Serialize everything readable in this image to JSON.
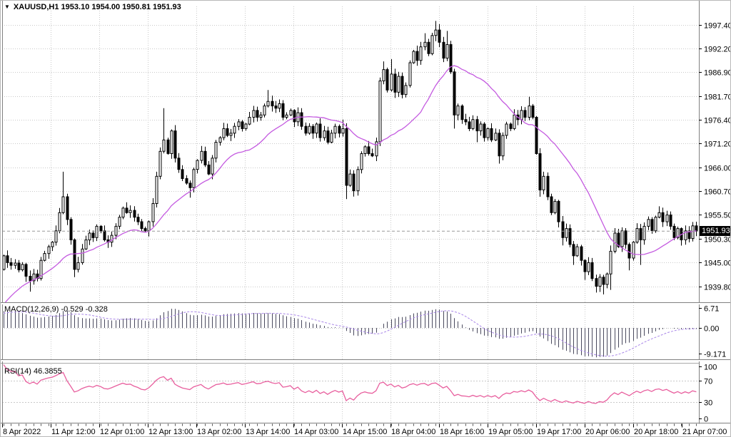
{
  "header": {
    "title": "XAUUSD,H1  1953.10 1954.00 1950.81 1951.93",
    "symbol": "XAUUSD",
    "timeframe": "H1",
    "open": "1953.10",
    "high": "1954.00",
    "low": "1950.81",
    "close": "1951.93"
  },
  "indicators": {
    "macd": {
      "label": "MACD(12,26,9) -0.529 -0.328",
      "name": "MACD",
      "params": [
        12,
        26,
        9
      ],
      "main_value": "-0.529",
      "signal_value": "-0.328",
      "axis_labels": [
        "6.71",
        "0.00",
        "-9.171"
      ],
      "axis_values": [
        6.71,
        0.0,
        -9.171
      ]
    },
    "rsi": {
      "label": "RSI(14) 46.3855",
      "name": "RSI",
      "params": [
        14
      ],
      "value": "46.3855",
      "axis_labels": [
        "100",
        "70",
        "30",
        "0"
      ],
      "axis_values": [
        100,
        70,
        30,
        0
      ],
      "levels": [
        70,
        30
      ]
    }
  },
  "colors": {
    "background": "#ffffff",
    "grid": "#c9c9c9",
    "frame": "#808080",
    "candle_outline": "#000000",
    "candle_bull_fill": "#ffffff",
    "candle_bear_fill": "#000000",
    "ma_line": "#c45ae0",
    "macd_histogram": "#4a4a5e",
    "macd_signal": "#a986e8",
    "rsi_line": "#e85f9e",
    "price_tag_bg": "#000000",
    "price_tag_text": "#ffffff",
    "axis_text": "#000000"
  },
  "chart_data": {
    "type": "candlestick",
    "title": "XAUUSD,H1",
    "symbol": "XAUUSD",
    "timeframe": "H1",
    "current_price": 1951.93,
    "price_axis_labels": [
      1997.4,
      1992.2,
      1986.9,
      1981.7,
      1976.4,
      1971.2,
      1966.0,
      1960.7,
      1955.5,
      1950.3,
      1945.0,
      1939.8
    ],
    "price_axis_range": [
      1935.8,
      2001.5
    ],
    "time_axis_labels": [
      "8 Apr 2022",
      "11 Apr 12:00",
      "12 Apr 01:00",
      "12 Apr 13:00",
      "13 Apr 02:00",
      "13 Apr 14:00",
      "14 Apr 03:00",
      "14 Apr 15:00",
      "18 Apr 04:00",
      "18 Apr 16:00",
      "19 Apr 05:00",
      "19 Apr 17:00",
      "20 Apr 06:00",
      "20 Apr 18:00",
      "21 Apr 07:00"
    ],
    "grid": true,
    "candles": {
      "opens_from_previous_close": true,
      "first_open": 1943.5,
      "default_wick": 0.8,
      "closes": [
        1946.5,
        1945.0,
        1944.4,
        1944.9,
        1943.4,
        1944.6,
        1942.0,
        1941.0,
        1942.5,
        1941.5,
        1945.5,
        1947.0,
        1948.5,
        1949.5,
        1952.0,
        1956.0,
        1959.5,
        1954.5,
        1950.0,
        1943.5,
        1945.0,
        1948.0,
        1950.0,
        1951.5,
        1950.5,
        1953.0,
        1952.0,
        1950.0,
        1949.5,
        1951.0,
        1953.0,
        1955.0,
        1957.0,
        1956.0,
        1956.5,
        1955.0,
        1954.0,
        1952.5,
        1952.0,
        1954.0,
        1958.0,
        1964.0,
        1969.5,
        1972.0,
        1969.0,
        1974.0,
        1968.0,
        1965.5,
        1963.5,
        1962.5,
        1961.5,
        1965.5,
        1967.5,
        1969.5,
        1966.5,
        1964.5,
        1968.0,
        1971.5,
        1972.5,
        1974.5,
        1973.0,
        1973.5,
        1975.0,
        1976.0,
        1974.5,
        1975.5,
        1977.0,
        1978.5,
        1977.0,
        1977.5,
        1979.5,
        1980.5,
        1979.5,
        1979.0,
        1980.0,
        1977.0,
        1977.5,
        1978.5,
        1976.0,
        1978.0,
        1975.0,
        1973.5,
        1975.0,
        1973.5,
        1975.5,
        1972.5,
        1974.0,
        1971.5,
        1973.5,
        1975.0,
        1973.5,
        1974.5,
        1962.0,
        1964.5,
        1960.8,
        1965.5,
        1969.0,
        1970.5,
        1969.0,
        1968.5,
        1971.6,
        1985.0,
        1987.5,
        1983.0,
        1986.5,
        1982.5,
        1986.0,
        1982.0,
        1984.0,
        1989.0,
        1991.5,
        1989.5,
        1992.5,
        1993.5,
        1991.0,
        1995.0,
        1996.2,
        1993.5,
        1990.0,
        1993.0,
        1987.0,
        1977.5,
        1979.5,
        1976.5,
        1976.0,
        1974.5,
        1976.5,
        1974.0,
        1975.5,
        1972.5,
        1974.5,
        1972.0,
        1973.5,
        1968.5,
        1973.0,
        1975.5,
        1974.5,
        1977.5,
        1976.5,
        1978.5,
        1977.0,
        1979.5,
        1977.0,
        1969.0,
        1961.0,
        1964.0,
        1959.5,
        1956.0,
        1958.5,
        1954.0,
        1950.5,
        1952.5,
        1949.0,
        1946.5,
        1948.5,
        1945.5,
        1943.0,
        1945.0,
        1941.5,
        1939.8,
        1941.8,
        1940.2,
        1942.5,
        1947.5,
        1951.5,
        1948.5,
        1952.0,
        1949.0,
        1946.0,
        1949.5,
        1952.5,
        1950.0,
        1953.0,
        1954.5,
        1952.0,
        1955.0,
        1956.0,
        1954.0,
        1955.5,
        1953.0,
        1950.5,
        1952.5,
        1950.0,
        1952.0,
        1950.3,
        1953.1,
        1951.93
      ],
      "wick_overrides": {
        "7": {
          "l": 1938.6
        },
        "16": {
          "h": 1965.0
        },
        "19": {
          "l": 1941.8
        },
        "43": {
          "h": 1979.0
        },
        "50": {
          "l": 1959.3
        },
        "71": {
          "h": 1983.0
        },
        "91": {
          "h": 1976.5
        },
        "92": {
          "l": 1959.0
        },
        "102": {
          "h": 1989.3
        },
        "104": {
          "h": 1989.8
        },
        "113": {
          "h": 1995.5
        },
        "116": {
          "h": 1998.2
        },
        "117": {
          "h": 1997.5
        },
        "119": {
          "h": 1996.0
        },
        "121": {
          "l": 1974.5
        },
        "127": {
          "l": 1971.5
        },
        "133": {
          "l": 1966.8
        },
        "141": {
          "h": 1981.5
        },
        "144": {
          "l": 1959.5
        },
        "150": {
          "l": 1948.8
        },
        "153": {
          "l": 1944.5
        },
        "156": {
          "l": 1941.2
        },
        "159": {
          "l": 1938.4
        },
        "161": {
          "l": 1938.0
        },
        "163": {
          "l": 1939.0
        },
        "168": {
          "l": 1943.3
        },
        "171": {
          "l": 1944.5
        },
        "176": {
          "h": 1957.4
        },
        "186": {
          "o": 1953.1,
          "h": 1954.0,
          "l": 1950.81
        }
      }
    },
    "overlay_ma": {
      "window": 21,
      "warmup_closes": [
        1923,
        1925,
        1926.5,
        1928,
        1929,
        1930,
        1931,
        1932,
        1933,
        1934,
        1935,
        1936,
        1937,
        1938,
        1939,
        1940,
        1941,
        1942,
        1942.5,
        1943,
        1943.5
      ]
    }
  }
}
